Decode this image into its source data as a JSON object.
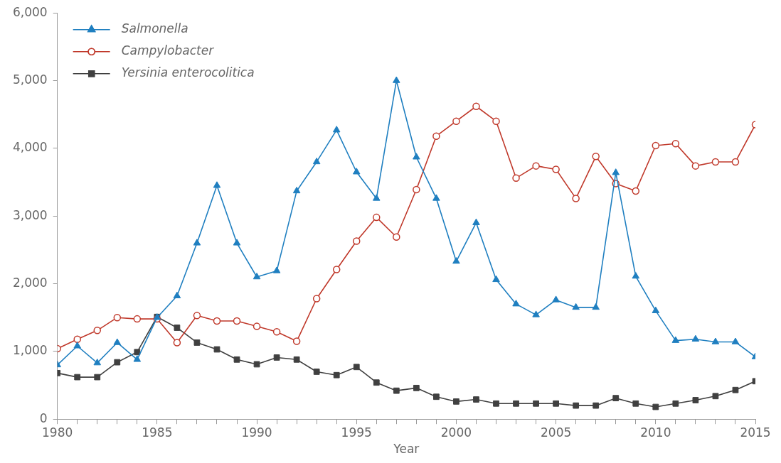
{
  "chart_data": {
    "type": "line",
    "xlabel": "Year",
    "x": [
      1980,
      1981,
      1982,
      1983,
      1984,
      1985,
      1986,
      1987,
      1988,
      1989,
      1990,
      1991,
      1992,
      1993,
      1994,
      1995,
      1996,
      1997,
      1998,
      1999,
      2000,
      2001,
      2002,
      2003,
      2004,
      2005,
      2006,
      2007,
      2008,
      2009,
      2010,
      2011,
      2012,
      2013,
      2014,
      2015
    ],
    "series": [
      {
        "name": "Salmonella",
        "color": "#1f7fc0",
        "marker": "triangle",
        "values": [
          800,
          1080,
          830,
          1130,
          880,
          1500,
          1820,
          2600,
          3450,
          2600,
          2100,
          2190,
          3370,
          3800,
          4270,
          3650,
          3260,
          5000,
          3870,
          3260,
          2330,
          2900,
          2060,
          1700,
          1540,
          1760,
          1650,
          1650,
          3640,
          2110,
          1600,
          1160,
          1180,
          1140,
          1140,
          920
        ]
      },
      {
        "name": "Campylobacter",
        "color": "#c0392b",
        "marker": "circle",
        "values": [
          1040,
          1180,
          1310,
          1500,
          1480,
          1480,
          1130,
          1530,
          1450,
          1450,
          1370,
          1290,
          1150,
          1780,
          2210,
          2630,
          2980,
          2690,
          3390,
          4180,
          4400,
          4620,
          4400,
          3560,
          3740,
          3690,
          3260,
          3880,
          3480,
          3370,
          4040,
          4070,
          3740,
          3800,
          3800,
          4350
        ]
      },
      {
        "name": "Yersinia enterocolitica",
        "color": "#404040",
        "marker": "square",
        "values": [
          680,
          620,
          620,
          840,
          990,
          1510,
          1350,
          1130,
          1030,
          880,
          810,
          910,
          880,
          700,
          650,
          770,
          540,
          420,
          460,
          330,
          260,
          290,
          230,
          230,
          230,
          230,
          200,
          200,
          310,
          230,
          180,
          230,
          280,
          340,
          430,
          560
        ]
      }
    ],
    "xlim": [
      1980,
      2015
    ],
    "xticks": [
      1980,
      {
        "value": 1981,
        "label": null
      },
      {
        "value": 1982,
        "label": null
      },
      {
        "value": 1983,
        "label": null
      },
      {
        "value": 1984,
        "label": null
      },
      1985,
      {
        "value": 1986,
        "label": null
      },
      {
        "value": 1987,
        "label": null
      },
      {
        "value": 1988,
        "label": null
      },
      {
        "value": 1989,
        "label": null
      },
      1990,
      {
        "value": 1991,
        "label": null
      },
      {
        "value": 1992,
        "label": null
      },
      {
        "value": 1993,
        "label": null
      },
      {
        "value": 1994,
        "label": null
      },
      1995,
      {
        "value": 1996,
        "label": null
      },
      {
        "value": 1997,
        "label": null
      },
      {
        "value": 1998,
        "label": null
      },
      {
        "value": 1999,
        "label": null
      },
      2000,
      {
        "value": 2001,
        "label": null
      },
      {
        "value": 2002,
        "label": null
      },
      {
        "value": 2003,
        "label": null
      },
      {
        "value": 2004,
        "label": null
      },
      2005,
      {
        "value": 2006,
        "label": null
      },
      {
        "value": 2007,
        "label": null
      },
      {
        "value": 2008,
        "label": null
      },
      {
        "value": 2009,
        "label": null
      },
      2010,
      {
        "value": 2011,
        "label": null
      },
      {
        "value": 2012,
        "label": null
      },
      {
        "value": 2013,
        "label": null
      },
      {
        "value": 2014,
        "label": null
      },
      2015
    ],
    "ylim": [
      0,
      6000
    ],
    "yticks": [
      0,
      {
        "value": 1000,
        "label": "1,000"
      },
      {
        "value": 2000,
        "label": "2,000"
      },
      {
        "value": 3000,
        "label": "3,000"
      },
      {
        "value": 4000,
        "label": "4,000"
      },
      {
        "value": 5000,
        "label": "5,000"
      },
      {
        "value": 6000,
        "label": "6,000"
      }
    ],
    "grid": false,
    "legend": "top left"
  }
}
